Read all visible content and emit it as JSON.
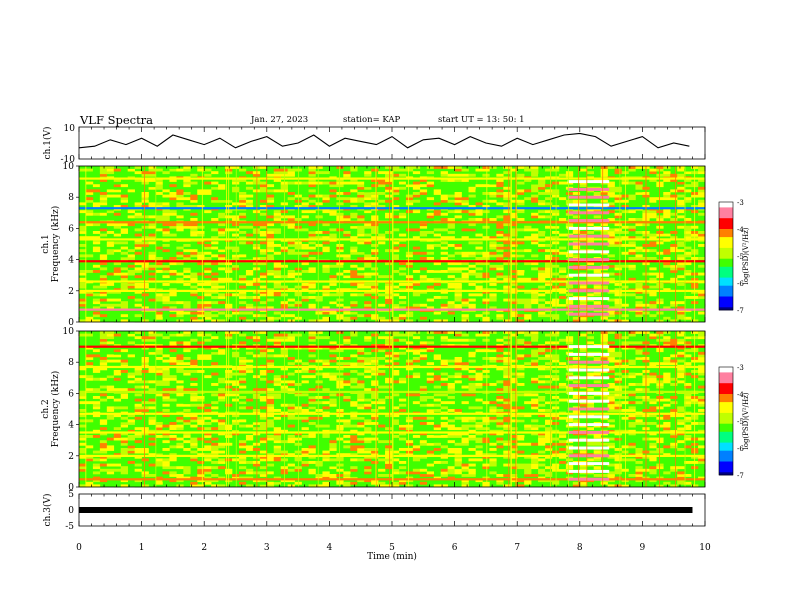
{
  "header": {
    "title": "VLF Spectra",
    "date": "Jan. 27, 2023",
    "station": "station= KAP",
    "start": "start  UT =   13: 50: 1"
  },
  "colors": {
    "spectrum_palette": [
      "#000080",
      "#0000ff",
      "#0080ff",
      "#00e0ff",
      "#00ff80",
      "#40ff00",
      "#c0ff00",
      "#ffff00",
      "#ff8000",
      "#ff0000",
      "#ff80a0",
      "#ffffff"
    ]
  },
  "chart_data": [
    {
      "id": "ch1_waveform",
      "type": "line",
      "ylabel": "ch.1(V)",
      "ylim": [
        -10,
        10
      ],
      "yticks": [
        "10",
        "-10"
      ],
      "xlim": [
        0,
        10
      ],
      "x": [
        0,
        0.25,
        0.5,
        0.75,
        1,
        1.25,
        1.5,
        1.75,
        2,
        2.25,
        2.5,
        2.75,
        3,
        3.25,
        3.5,
        3.75,
        4,
        4.25,
        4.5,
        4.75,
        5,
        5.25,
        5.5,
        5.75,
        6,
        6.25,
        6.5,
        6.75,
        7,
        7.25,
        7.5,
        7.75,
        8,
        8.25,
        8.5,
        8.75,
        9,
        9.25,
        9.5,
        9.75
      ],
      "values": [
        -3,
        -2,
        2,
        -1,
        3,
        -2,
        5,
        2,
        -1,
        3,
        -3,
        1,
        4,
        -2,
        0,
        5,
        -2,
        3,
        1,
        -1,
        4,
        -3,
        2,
        3,
        -1,
        4,
        0,
        -2,
        3,
        -1,
        2,
        5,
        6,
        4,
        -2,
        1,
        4,
        -3,
        0,
        -2
      ]
    },
    {
      "id": "ch1_spectrogram",
      "type": "heatmap",
      "ylabel": "ch.1",
      "ylabel2": "Frequency (kHz)",
      "ylim": [
        0,
        10
      ],
      "yticks": [
        "0",
        "2",
        "4",
        "6",
        "8",
        "10"
      ],
      "xlim": [
        0,
        9.8
      ],
      "colorbar": {
        "label": "log(PSD)(V²/Hz)",
        "range": [
          -7,
          -3
        ],
        "ticks": [
          "-3",
          "-4",
          "-5",
          "-6",
          "-7"
        ]
      },
      "bands": [
        {
          "freq": 0.8,
          "level": -3.3
        },
        {
          "freq": 2.0,
          "level": -4.3
        },
        {
          "freq": 2.6,
          "level": -4.5
        },
        {
          "freq": 3.9,
          "level": -3.8
        },
        {
          "freq": 5.3,
          "level": -4.4
        },
        {
          "freq": 6.4,
          "level": -4.2
        },
        {
          "freq": 7.3,
          "level": -6.2
        },
        {
          "freq": 9.2,
          "level": -4.6
        }
      ],
      "burst": {
        "t_start": 7.65,
        "t_end": 8.3,
        "level": -3.5
      }
    },
    {
      "id": "ch2_spectrogram",
      "type": "heatmap",
      "ylabel": "ch.2",
      "ylabel2": "Frequency (kHz)",
      "ylim": [
        0,
        10
      ],
      "yticks": [
        "0",
        "2",
        "4",
        "6",
        "8",
        "10"
      ],
      "xlim": [
        0,
        9.8
      ],
      "colorbar": {
        "label": "log(PSD)(V²/Hz)",
        "range": [
          -7,
          -3
        ],
        "ticks": [
          "-3",
          "-4",
          "-5",
          "-6",
          "-7"
        ]
      },
      "bands": [
        {
          "freq": 0.5,
          "level": -4.0
        },
        {
          "freq": 2.0,
          "level": -4.5
        },
        {
          "freq": 3.5,
          "level": -4.6
        },
        {
          "freq": 4.7,
          "level": -4.3
        },
        {
          "freq": 6.1,
          "level": -4.8
        },
        {
          "freq": 7.7,
          "level": -4.5
        },
        {
          "freq": 9.0,
          "level": -3.8
        }
      ],
      "burst": {
        "t_start": 7.65,
        "t_end": 8.3,
        "level": -3.4
      }
    },
    {
      "id": "ch3_waveform",
      "type": "line",
      "ylabel": "ch.3(V)",
      "xlabel": "Time  (min)",
      "ylim": [
        -5,
        5
      ],
      "yticks": [
        "5",
        "0",
        "-5"
      ],
      "xlim": [
        0,
        10
      ],
      "xticks": [
        "0",
        "1",
        "2",
        "3",
        "4",
        "5",
        "6",
        "7",
        "8",
        "9",
        "10"
      ],
      "x": [
        0,
        9.8
      ],
      "values": [
        0,
        0
      ]
    }
  ]
}
